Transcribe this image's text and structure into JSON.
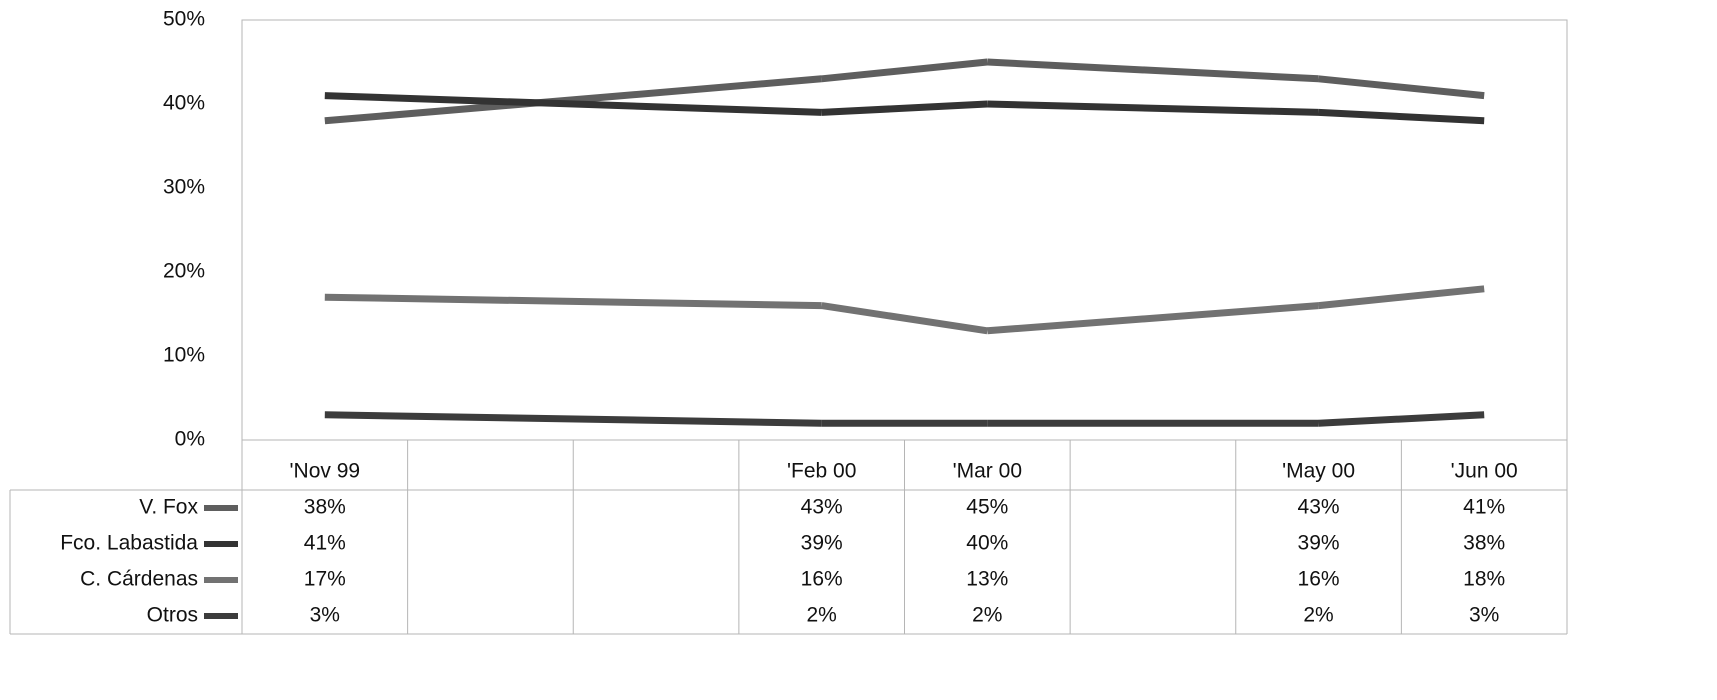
{
  "chart_data": {
    "type": "line",
    "categories": [
      "'Nov 99",
      null,
      null,
      "'Feb 00",
      "'Mar 00",
      null,
      "'May 00",
      "'Jun 00"
    ],
    "series": [
      {
        "name": "V. Fox",
        "color": "#5e5e5e",
        "values": [
          38,
          null,
          null,
          43,
          45,
          null,
          43,
          41
        ],
        "value_labels": [
          "38%",
          null,
          null,
          "43%",
          "45%",
          null,
          "43%",
          "41%"
        ]
      },
      {
        "name": "Fco. Labastida",
        "color": "#333333",
        "values": [
          41,
          null,
          null,
          39,
          40,
          null,
          39,
          38
        ],
        "value_labels": [
          "41%",
          null,
          null,
          "39%",
          "40%",
          null,
          "39%",
          "38%"
        ]
      },
      {
        "name": "C. Cárdenas",
        "color": "#727272",
        "values": [
          17,
          null,
          null,
          16,
          13,
          null,
          16,
          18
        ],
        "value_labels": [
          "17%",
          null,
          null,
          "16%",
          "13%",
          null,
          "16%",
          "18%"
        ]
      },
      {
        "name": "Otros",
        "color": "#3c3c3c",
        "values": [
          3,
          null,
          null,
          2,
          2,
          null,
          2,
          3
        ],
        "value_labels": [
          "3%",
          null,
          null,
          "2%",
          "2%",
          null,
          "2%",
          "3%"
        ]
      }
    ],
    "ylim": [
      0,
      50
    ],
    "yticks": [
      {
        "value": 0,
        "label": "0%"
      },
      {
        "value": 10,
        "label": "10%"
      },
      {
        "value": 20,
        "label": "20%"
      },
      {
        "value": 30,
        "label": "30%"
      },
      {
        "value": 40,
        "label": "40%"
      },
      {
        "value": 50,
        "label": "50%"
      }
    ],
    "grid": false
  }
}
